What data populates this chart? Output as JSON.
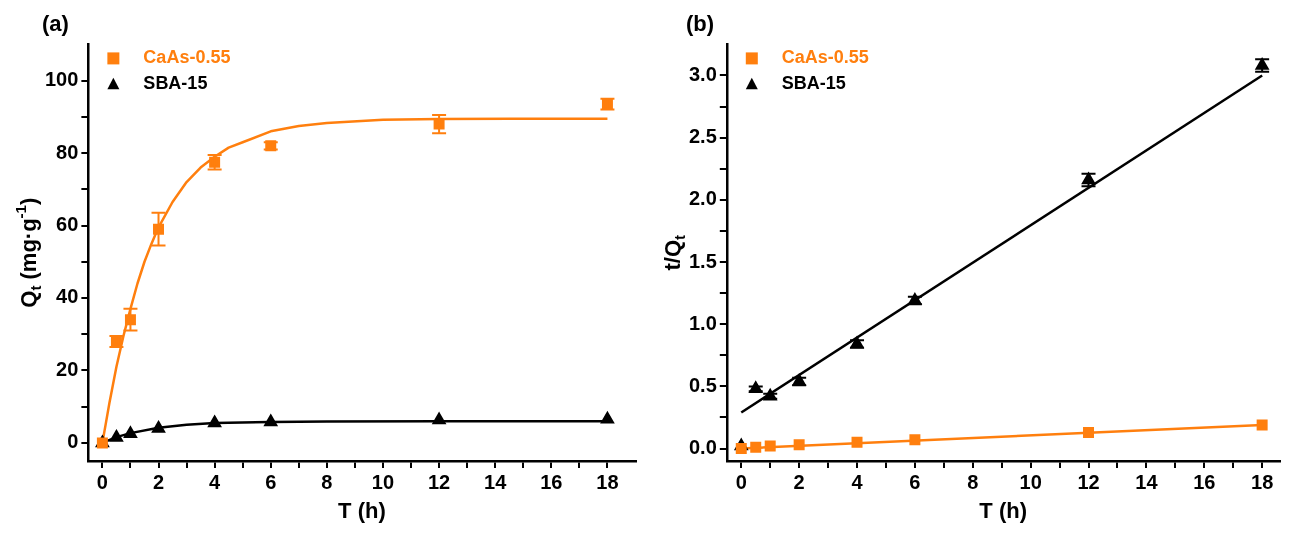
{
  "chart_data": [
    {
      "type": "scatter",
      "title": "(a)",
      "xlabel": "T (h)",
      "ylabel": "Q$_{t}$ (mg·g$^{-1}$)",
      "legend": "top left",
      "grid": false,
      "xlim": [
        -0.5,
        19
      ],
      "xticks": [
        0,
        {
          "value": 1,
          "label": null
        },
        2,
        {
          "value": 3,
          "label": null
        },
        4,
        {
          "value": 5,
          "label": null
        },
        6,
        {
          "value": 7,
          "label": null
        },
        8,
        {
          "value": 9,
          "label": null
        },
        10,
        {
          "value": 11,
          "label": null
        },
        12,
        {
          "value": 13,
          "label": null
        },
        14,
        {
          "value": 15,
          "label": null
        },
        16,
        {
          "value": 17,
          "label": null
        },
        18
      ],
      "ylim": [
        -5,
        110
      ],
      "yticks": [
        0,
        {
          "value": 10,
          "label": null
        },
        20,
        {
          "value": 30,
          "label": null
        },
        40,
        {
          "value": 50,
          "label": null
        },
        60,
        {
          "value": 70,
          "label": null
        },
        80,
        {
          "value": 90,
          "label": null
        },
        100
      ],
      "series": [
        {
          "name": "CaAs-0.55",
          "color": "#ff7f0e",
          "type": "scatter",
          "marker": "square",
          "x": [
            0,
            0.5,
            1,
            2,
            4,
            6,
            12,
            18
          ],
          "values": [
            0,
            28,
            34,
            59,
            77.5,
            82,
            88,
            93.5
          ],
          "errors": [
            null,
            1.5,
            3,
            4.5,
            2,
            1,
            2.5,
            1.5
          ]
        },
        {
          "name": "SBA-15",
          "color": "#000000",
          "type": "scatter",
          "marker": "triangle",
          "x": [
            0,
            0.5,
            1,
            2,
            4,
            6,
            12,
            18
          ],
          "values": [
            0,
            1.5,
            2.5,
            4,
            5.5,
            5.8,
            6.3,
            6.5
          ]
        },
        {
          "color": "#ff7f0e",
          "type": "line",
          "marker": "none",
          "x": [
            0,
            0.25,
            0.5,
            0.75,
            1,
            1.25,
            1.5,
            1.75,
            2,
            2.5,
            3,
            3.5,
            4,
            4.5,
            5,
            6,
            7,
            8,
            10,
            12,
            15,
            18
          ],
          "values": [
            0,
            11,
            21,
            29.5,
            37,
            44,
            50,
            55,
            59.5,
            66.5,
            72,
            76,
            79,
            81.5,
            83,
            86,
            87.5,
            88.3,
            89.2,
            89.4,
            89.5,
            89.5
          ]
        },
        {
          "color": "#000000",
          "type": "line",
          "marker": "none",
          "x": [
            0,
            0.5,
            1,
            2,
            3,
            4,
            6,
            8,
            12,
            18
          ],
          "values": [
            0,
            1.6,
            2.7,
            4.2,
            5,
            5.5,
            5.8,
            5.9,
            6,
            6
          ]
        }
      ]
    },
    {
      "type": "scatter",
      "title": "(b)",
      "xlabel": "T (h)",
      "ylabel": "t/Q$_{t}$",
      "legend": "top left",
      "grid": false,
      "xlim": [
        -0.5,
        18.6
      ],
      "xticks": [
        0,
        {
          "value": 1,
          "label": null
        },
        2,
        {
          "value": 3,
          "label": null
        },
        4,
        {
          "value": 5,
          "label": null
        },
        6,
        {
          "value": 7,
          "label": null
        },
        8,
        {
          "value": 9,
          "label": null
        },
        10,
        {
          "value": 11,
          "label": null
        },
        12,
        {
          "value": 13,
          "label": null
        },
        14,
        {
          "value": 15,
          "label": null
        },
        16,
        {
          "value": 17,
          "label": null
        },
        18
      ],
      "ylim": [
        -0.1,
        3.25
      ],
      "yticks": [
        {
          "value": 0,
          "label": "0.0"
        },
        {
          "value": 0.25,
          "label": null
        },
        0.5,
        {
          "value": 0.75,
          "label": null
        },
        {
          "value": 1,
          "label": "1.0"
        },
        {
          "value": 1.25,
          "label": null
        },
        1.5,
        {
          "value": 1.75,
          "label": null
        },
        {
          "value": 2,
          "label": "2.0"
        },
        {
          "value": 2.25,
          "label": null
        },
        2.5,
        {
          "value": 2.75,
          "label": null
        },
        {
          "value": 3,
          "label": "3.0"
        }
      ],
      "series": [
        {
          "name": "CaAs-0.55",
          "color": "#ff7f0e",
          "type": "scatter",
          "marker": "square",
          "x": [
            0,
            0.5,
            1,
            2,
            4,
            6,
            12,
            18
          ],
          "values": [
            0,
            0.01,
            0.02,
            0.03,
            0.05,
            0.07,
            0.13,
            0.19
          ]
        },
        {
          "name": "SBA-15",
          "color": "#000000",
          "type": "scatter",
          "marker": "triangle",
          "x": [
            0,
            0.5,
            1,
            2,
            4,
            6,
            12,
            18
          ],
          "values": [
            0.02,
            0.48,
            0.42,
            0.54,
            0.84,
            1.19,
            2.16,
            3.08
          ],
          "errors": [
            null,
            0.02,
            0.02,
            0.03,
            0.03,
            0.03,
            0.05,
            0.05
          ]
        },
        {
          "color": "#ff7f0e",
          "type": "line",
          "marker": "none",
          "x": [
            0,
            18
          ],
          "values": [
            0,
            0.19
          ]
        },
        {
          "color": "#000000",
          "type": "line",
          "marker": "none",
          "x": [
            0,
            18
          ],
          "values": [
            0.29,
            3.0
          ]
        }
      ]
    }
  ]
}
